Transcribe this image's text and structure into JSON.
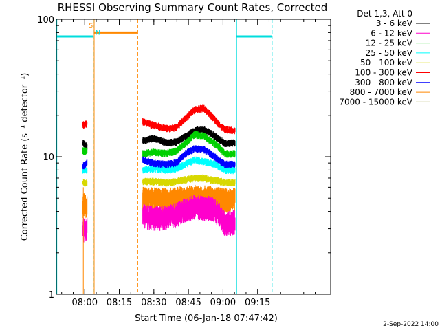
{
  "chart_data": {
    "type": "line",
    "title": "RHESSI Observing Summary Count Rates, Corrected",
    "xlabel": "Start Time (06-Jan-18 07:47:42)",
    "ylabel": "Corrected Count Rate (s⁻¹ detector⁻¹)",
    "y_scale": "log",
    "ylim": [
      1,
      100
    ],
    "y_ticks": [
      "1",
      "10",
      "100"
    ],
    "x_range_min": [
      0,
      119
    ],
    "x_ticks": [
      {
        "label": "08:00",
        "min": 12.3
      },
      {
        "label": "08:15",
        "min": 27.3
      },
      {
        "label": "08:30",
        "min": 42.3
      },
      {
        "label": "08:45",
        "min": 57.3
      },
      {
        "label": "09:00",
        "min": 72.3
      },
      {
        "label": "09:15",
        "min": 87.3
      }
    ],
    "legend_title": "Det 1,3, Att 0",
    "legend_position": "right, outside plot",
    "series": [
      {
        "name": "3 - 6 keV",
        "color": "#000000",
        "segments": [
          {
            "x": [
              11.5,
              13.3
            ],
            "y": [
              12.5,
              12.0
            ]
          },
          {
            "x": [
              37.5,
              42,
              48,
              52,
              56,
              60,
              64,
              67,
              70,
              73,
              77.5
            ],
            "y": [
              13.0,
              13.6,
              12.6,
              12.8,
              14.0,
              15.5,
              15.8,
              14.8,
              13.6,
              12.5,
              12.6
            ]
          }
        ]
      },
      {
        "name": "6 - 12 keV",
        "color": "#ff00cc",
        "segments": [
          {
            "x": [
              11.5,
              13.3
            ],
            "y": [
              3.0,
              3.0
            ]
          },
          {
            "x": [
              37.5,
              42,
              48,
              52,
              56,
              60,
              64,
              67,
              70,
              73,
              77.5
            ],
            "y": [
              3.8,
              3.6,
              3.7,
              3.8,
              4.2,
              4.4,
              4.3,
              4.3,
              4.0,
              3.3,
              3.4
            ]
          }
        ]
      },
      {
        "name": "12 - 25 keV",
        "color": "#00d000",
        "segments": [
          {
            "x": [
              11.5,
              13.3
            ],
            "y": [
              11.0,
              11.0
            ]
          },
          {
            "x": [
              37.5,
              42,
              48,
              52,
              56,
              60,
              64,
              67,
              70,
              73,
              77.5
            ],
            "y": [
              10.5,
              10.8,
              10.6,
              11.0,
              12.5,
              14.5,
              14.2,
              13.0,
              12.0,
              10.5,
              10.5
            ]
          }
        ]
      },
      {
        "name": "25 - 50 keV",
        "color": "#00ffff",
        "segments": [
          {
            "x": [
              11.5,
              13.3
            ],
            "y": [
              8.0,
              8.0
            ]
          },
          {
            "x": [
              37.5,
              42,
              48,
              52,
              56,
              60,
              64,
              67,
              70,
              73,
              77.5
            ],
            "y": [
              8.0,
              8.2,
              8.0,
              8.2,
              8.8,
              9.5,
              9.2,
              9.0,
              8.6,
              8.0,
              8.0
            ]
          }
        ]
      },
      {
        "name": "50 - 100 keV",
        "color": "#d8d800",
        "segments": [
          {
            "x": [
              11.5,
              13.3
            ],
            "y": [
              6.5,
              6.5
            ]
          },
          {
            "x": [
              37.5,
              42,
              48,
              52,
              56,
              60,
              64,
              67,
              70,
              73,
              77.5
            ],
            "y": [
              6.6,
              6.6,
              6.5,
              6.6,
              6.8,
              7.0,
              7.0,
              6.8,
              6.7,
              6.5,
              6.5
            ]
          }
        ]
      },
      {
        "name": "100 - 300 keV",
        "color": "#ff0000",
        "segments": [
          {
            "x": [
              11.5,
              13.3
            ],
            "y": [
              17.0,
              17.5
            ]
          },
          {
            "x": [
              37.5,
              42,
              48,
              52,
              56,
              60,
              64,
              67,
              70,
              73,
              77.5
            ],
            "y": [
              18.0,
              17.0,
              16.0,
              16.3,
              19.0,
              22.0,
              22.5,
              20.0,
              17.5,
              15.8,
              15.5
            ]
          }
        ]
      },
      {
        "name": "300 - 800 keV",
        "color": "#0000ff",
        "segments": [
          {
            "x": [
              11.5,
              13.3
            ],
            "y": [
              8.5,
              9.0
            ]
          },
          {
            "x": [
              37.5,
              42,
              48,
              52,
              56,
              60,
              64,
              67,
              70,
              73,
              77.5
            ],
            "y": [
              9.5,
              9.0,
              8.8,
              9.0,
              10.5,
              11.5,
              11.3,
              10.5,
              9.6,
              8.8,
              8.8
            ]
          }
        ]
      },
      {
        "name": "800 - 7000 keV",
        "color": "#ff8800",
        "segments": [
          {
            "x": [
              11.5,
              13.3
            ],
            "y": [
              4.5,
              4.5
            ]
          },
          {
            "x": [
              37.5,
              42,
              48,
              52,
              56,
              60,
              64,
              67,
              70,
              73,
              77.5
            ],
            "y": [
              5.0,
              5.0,
              4.9,
              5.0,
              5.1,
              5.2,
              5.2,
              5.1,
              5.0,
              4.9,
              4.9
            ]
          }
        ]
      },
      {
        "name": "7000 - 15000 keV",
        "color": "#808000",
        "segments": []
      }
    ],
    "annotations": [
      {
        "type": "bar",
        "color": "#00dddd",
        "x": [
          0,
          16
        ],
        "y": 75
      },
      {
        "type": "bar",
        "color": "#ff8800",
        "x": [
          16.4,
          35.3
        ],
        "y": 80
      },
      {
        "type": "bar",
        "color": "#00dddd",
        "x": [
          78.2,
          93.6
        ],
        "y": 75
      },
      {
        "type": "vline",
        "color": "#00dddd",
        "style": "solid",
        "x": 0.2
      },
      {
        "type": "vline",
        "color": "#00dddd",
        "style": "dashed",
        "x": 16.0
      },
      {
        "type": "vline",
        "color": "#ff8800",
        "style": "solid",
        "x": 16.4
      },
      {
        "type": "vline",
        "color": "#ff8800",
        "style": "dashed",
        "x": 35.3
      },
      {
        "type": "vline",
        "color": "#00dddd",
        "style": "solid",
        "x": 78.2
      },
      {
        "type": "vline",
        "color": "#00dddd",
        "style": "dashed",
        "x": 93.6
      }
    ],
    "letter_marks": [
      {
        "text": "S",
        "color": "#ff8800",
        "x": 15.0,
        "y": 87
      },
      {
        "text": "N",
        "color": "#00dddd",
        "x": 18.0,
        "y": 77
      }
    ],
    "orange_drop": {
      "x": 11.7,
      "y": [
        1,
        6
      ]
    },
    "grid": false
  },
  "footer": {
    "date_label": "2-Sep-2022 14:00"
  }
}
